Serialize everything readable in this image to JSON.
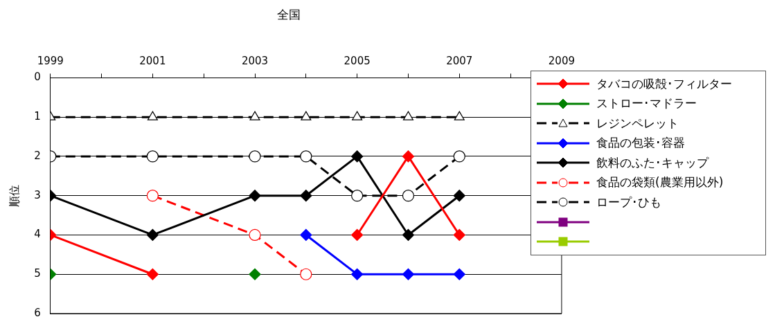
{
  "chart_data": {
    "type": "line",
    "title": "全国",
    "ylabel": "順位",
    "x": [
      1999,
      2001,
      2003,
      2004,
      2005,
      2006,
      2007
    ],
    "xlim": [
      1999,
      2009
    ],
    "xticks": [
      1999,
      {
        "value": 2000,
        "label": null
      },
      2001,
      {
        "value": 2002,
        "label": null
      },
      2003,
      {
        "value": 2004,
        "label": null
      },
      2005,
      {
        "value": 2006,
        "label": null
      },
      2007,
      {
        "value": 2008,
        "label": null
      },
      2009
    ],
    "ylim": [
      6,
      0
    ],
    "yticks": [
      0,
      1,
      2,
      3,
      4,
      5,
      6
    ],
    "grid": "y",
    "legend": "right",
    "series": [
      {
        "name": "タバコの吸殻･フィルター",
        "color": "#ff0000",
        "marker": "diamond",
        "line_style": "solid",
        "values": [
          4,
          5,
          null,
          null,
          4,
          2,
          4
        ]
      },
      {
        "name": "ストロー･マドラー",
        "color": "#008000",
        "marker": "diamond",
        "line_style": "solid",
        "values": [
          5,
          null,
          5,
          null,
          null,
          null,
          null
        ]
      },
      {
        "name": "レジンペレット",
        "color": "#000000",
        "marker": "triangle",
        "line_style": "dashed",
        "values": [
          1,
          1,
          1,
          1,
          1,
          1,
          1
        ]
      },
      {
        "name": "食品の包装･容器",
        "color": "#0000ff",
        "marker": "diamond",
        "line_style": "solid",
        "values": [
          null,
          null,
          null,
          4,
          5,
          5,
          5
        ]
      },
      {
        "name": "飲料のふた･キャップ",
        "color": "#000000",
        "marker": "diamond",
        "line_style": "solid",
        "values": [
          3,
          4,
          3,
          3,
          2,
          4,
          3
        ]
      },
      {
        "name": "食品の袋類(農業用以外)",
        "color": "#ff0000",
        "marker": "circle",
        "line_style": "dashed",
        "values": [
          null,
          3,
          4,
          5,
          null,
          null,
          null
        ]
      },
      {
        "name": "ロープ･ひも",
        "color": "#000000",
        "marker": "circle",
        "line_style": "dashed",
        "values": [
          2,
          2,
          2,
          2,
          3,
          3,
          2
        ]
      },
      {
        "color": "#800080",
        "marker": "square",
        "line_style": "solid",
        "values": [
          null,
          null,
          null,
          null,
          null,
          null,
          null
        ]
      },
      {
        "color": "#99cc00",
        "marker": "square",
        "line_style": "solid",
        "values": [
          null,
          null,
          null,
          null,
          null,
          null,
          null
        ]
      }
    ]
  }
}
